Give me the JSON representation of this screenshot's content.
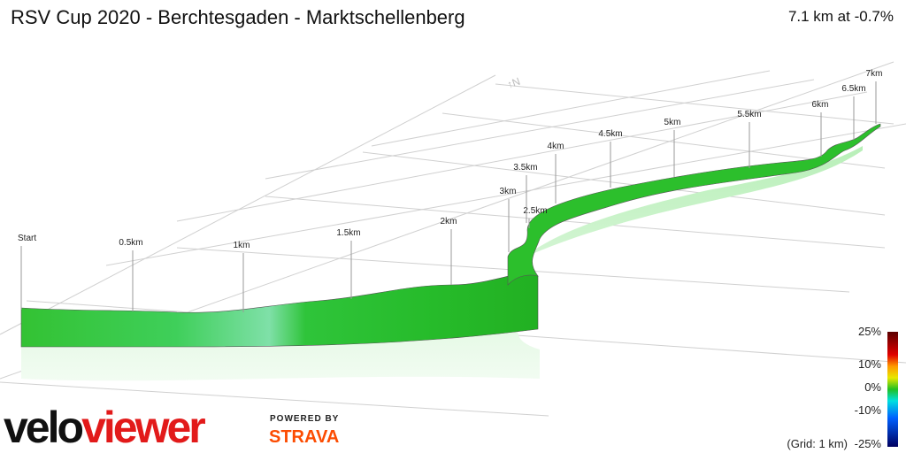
{
  "header": {
    "title": "RSV Cup 2020 - Berchtesgaden - Marktschellenberg",
    "summary": "7.1 km at -0.7%"
  },
  "markers": [
    "Start",
    "0.5km",
    "1km",
    "1.5km",
    "2km",
    "2.5km",
    "3km",
    "3.5km",
    "4km",
    "4.5km",
    "5km",
    "5.5km",
    "6km",
    "6.5km",
    "7km"
  ],
  "legend": {
    "labels": [
      "25%",
      "10%",
      "0%",
      "-10%",
      "-25%"
    ],
    "grid_note": "(Grid: 1 km)"
  },
  "branding": {
    "logo_velo": "velo",
    "logo_viewer": "viewer",
    "powered_by": "POWERED BY",
    "strava": "STRAVA"
  }
}
